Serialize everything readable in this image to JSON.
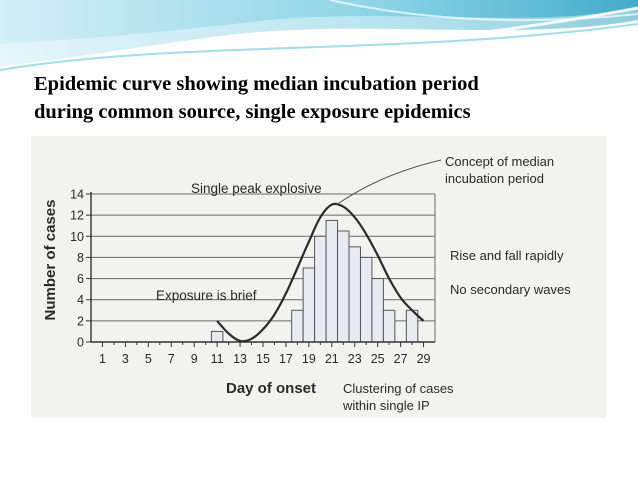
{
  "slide": {
    "title_line1": "Epidemic curve showing median incubation period",
    "title_line2": "during common source, single exposure epidemics"
  },
  "colors": {
    "banner_light": "#cfeef6",
    "banner_mid": "#7fcfe3",
    "banner_dark": "#2fa3c6",
    "bar_fill": "#e8ecf2",
    "ink": "#2a2a2a"
  },
  "chart_data": {
    "type": "bar",
    "xlabel": "Day of onset",
    "ylabel": "Number of cases",
    "ylim": [
      0,
      14
    ],
    "yticks": [
      0,
      2,
      4,
      6,
      8,
      10,
      12,
      14
    ],
    "xticks": [
      1,
      3,
      5,
      7,
      9,
      11,
      13,
      15,
      17,
      19,
      21,
      23,
      25,
      27,
      29
    ],
    "grid": true,
    "bars": [
      {
        "day": 11,
        "cases": 1
      },
      {
        "day": 18,
        "cases": 3
      },
      {
        "day": 19,
        "cases": 7
      },
      {
        "day": 20,
        "cases": 10
      },
      {
        "day": 21,
        "cases": 11.5
      },
      {
        "day": 22,
        "cases": 10.5
      },
      {
        "day": 23,
        "cases": 9
      },
      {
        "day": 24,
        "cases": 8
      },
      {
        "day": 25,
        "cases": 6
      },
      {
        "day": 26,
        "cases": 3
      },
      {
        "day": 28,
        "cases": 3
      }
    ],
    "curve": [
      [
        11,
        2
      ],
      [
        12,
        0.8
      ],
      [
        13,
        0.1
      ],
      [
        14,
        0.3
      ],
      [
        15,
        1.2
      ],
      [
        16,
        2.6
      ],
      [
        17,
        4.6
      ],
      [
        18,
        7.0
      ],
      [
        19,
        9.5
      ],
      [
        20,
        11.8
      ],
      [
        21,
        13
      ],
      [
        22,
        12.8
      ],
      [
        23,
        11.8
      ],
      [
        24,
        10.2
      ],
      [
        25,
        8.2
      ],
      [
        26,
        6.0
      ],
      [
        27,
        4.2
      ],
      [
        28,
        3.0
      ],
      [
        29,
        2
      ]
    ],
    "annotations": {
      "peak": "Single peak explosive",
      "median_line1": "Concept of median",
      "median_line2": "incubation period",
      "rise_fall": "Rise and fall rapidly",
      "no_secondary": "No secondary waves",
      "exposure": "Exposure is brief",
      "cluster_line1": "Clustering of cases",
      "cluster_line2": "within single IP"
    }
  }
}
